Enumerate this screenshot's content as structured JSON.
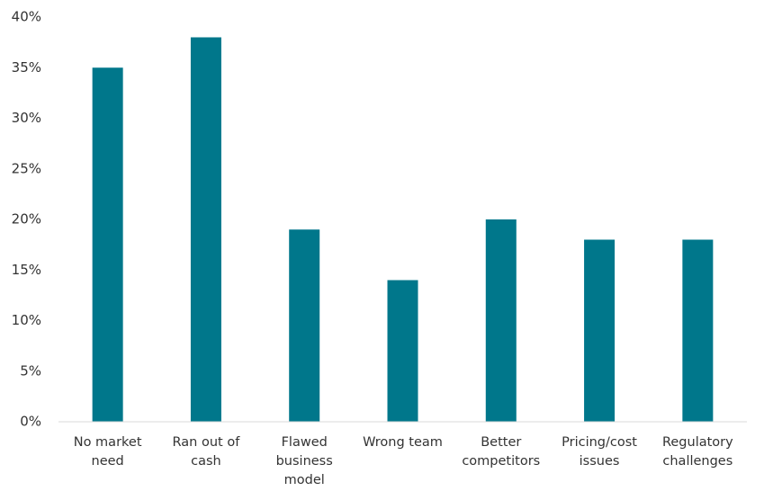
{
  "chart_data": {
    "type": "bar",
    "categories": [
      "No market need",
      "Ran out of cash",
      "Flawed business model",
      "Wrong team",
      "Better competitors",
      "Pricing/cost issues",
      "Regulatory challenges"
    ],
    "values": [
      35,
      38,
      19,
      14,
      20,
      18,
      18
    ],
    "color": "#00778b",
    "ylim": [
      0,
      40
    ],
    "yticks": [
      {
        "value": 0,
        "label": "0%"
      },
      {
        "value": 5,
        "label": "5%"
      },
      {
        "value": 10,
        "label": "10%"
      },
      {
        "value": 15,
        "label": "15%"
      },
      {
        "value": 20,
        "label": "20%"
      },
      {
        "value": 25,
        "label": "25%"
      },
      {
        "value": 30,
        "label": "30%"
      },
      {
        "value": 35,
        "label": "35%"
      },
      {
        "value": 40,
        "label": "40%"
      }
    ],
    "grid": false
  }
}
